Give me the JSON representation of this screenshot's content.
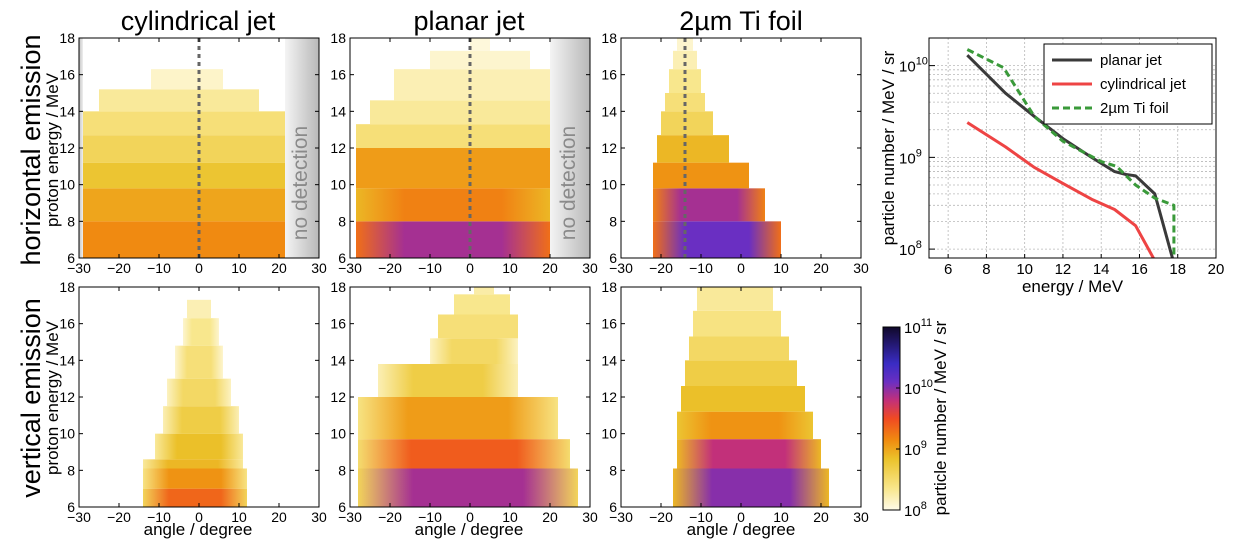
{
  "column_titles": [
    "cylindrical jet",
    "planar jet",
    "2µm Ti foil"
  ],
  "row_titles": [
    "horizontal emission",
    "vertical emission"
  ],
  "ylabel": "proton energy / MeV",
  "xlabel": "angle / degree",
  "no_detection_label": "no detection",
  "colorbar": {
    "label": "particle number / MeV / sr",
    "tick_mantissa": "10",
    "tick_exponents": [
      "8",
      "9",
      "10",
      "11"
    ],
    "scale": "log",
    "range": [
      100000000.0,
      100000000000.0
    ],
    "colors": [
      "#fffbe8",
      "#f8e68a",
      "#ebc22a",
      "#f08c10",
      "#f04a22",
      "#c2307a",
      "#6a2fc2",
      "#3a2cc4",
      "#10082a"
    ]
  },
  "chart_data": [
    {
      "type": "heatmap",
      "panel": "horizontal emission / cylindrical jet",
      "xlabel": "",
      "ylabel": "proton energy / MeV",
      "xlim": [
        -30,
        30
      ],
      "ylim": [
        6,
        18
      ],
      "xticks": [
        "−30",
        "−20",
        "−10",
        "0",
        "10",
        "20",
        "30"
      ],
      "yticks": [
        "6",
        "8",
        "10",
        "12",
        "14",
        "16",
        "18"
      ],
      "dashed_line_angle": 0,
      "shaded_regions": [
        [
          -30,
          -29
        ],
        [
          21.5,
          30
        ]
      ],
      "shaded_label": "no detection",
      "energy_bands": [
        {
          "e": [
            6,
            8
          ],
          "angle": [
            -29,
            21.5
          ],
          "log_value": 9.15
        },
        {
          "e": [
            8,
            9.8
          ],
          "angle": [
            -29,
            21.5
          ],
          "log_value": 9.0
        },
        {
          "e": [
            9.8,
            11.2
          ],
          "angle": [
            -29,
            21.5
          ],
          "log_value": 8.8
        },
        {
          "e": [
            11.2,
            12.7
          ],
          "angle": [
            -29,
            21.5
          ],
          "log_value": 8.6
        },
        {
          "e": [
            12.7,
            14
          ],
          "angle": [
            -29,
            21.5
          ],
          "log_value": 8.45
        },
        {
          "e": [
            14,
            15.2
          ],
          "angle": [
            -25,
            15
          ],
          "log_value": 8.3
        },
        {
          "e": [
            15.2,
            16.3
          ],
          "angle": [
            -12,
            6
          ],
          "log_value": 8.12
        }
      ]
    },
    {
      "type": "heatmap",
      "panel": "horizontal emission / planar jet",
      "xlabel": "",
      "ylabel": "",
      "xlim": [
        -30,
        30
      ],
      "ylim": [
        6,
        18
      ],
      "xticks": [
        "−30",
        "−20",
        "−10",
        "0",
        "10",
        "20",
        "30"
      ],
      "yticks": [
        "6",
        "8",
        "10",
        "12",
        "14",
        "16",
        "18"
      ],
      "dashed_line_angle": 0,
      "shaded_regions": [
        [
          20,
          30
        ]
      ],
      "shaded_label": "no detection",
      "energy_bands": [
        {
          "e": [
            6,
            8
          ],
          "angle": [
            -28.5,
            20
          ],
          "log_value": 9.9,
          "edge_value": 9.3
        },
        {
          "e": [
            8,
            9.8
          ],
          "angle": [
            -28.5,
            20
          ],
          "log_value": 9.2,
          "edge_value": 8.9
        },
        {
          "e": [
            9.8,
            12
          ],
          "angle": [
            -28.5,
            20
          ],
          "log_value": 9.05
        },
        {
          "e": [
            12,
            13.3
          ],
          "angle": [
            -28.5,
            20
          ],
          "log_value": 8.45
        },
        {
          "e": [
            13.3,
            14.6
          ],
          "angle": [
            -25,
            20
          ],
          "log_value": 8.3
        },
        {
          "e": [
            14.6,
            16.3
          ],
          "angle": [
            -19,
            20
          ],
          "log_value": 8.2
        },
        {
          "e": [
            16.3,
            17.3
          ],
          "angle": [
            -10,
            15
          ],
          "log_value": 8.1
        },
        {
          "e": [
            17.3,
            18
          ],
          "angle": [
            0,
            5
          ],
          "log_value": 8.05
        }
      ]
    },
    {
      "type": "heatmap",
      "panel": "horizontal emission / 2µm Ti foil",
      "xlabel": "",
      "ylabel": "",
      "xlim": [
        -30,
        30
      ],
      "ylim": [
        6,
        18
      ],
      "xticks": [
        "−30",
        "−20",
        "−10",
        "0",
        "10",
        "20",
        "30"
      ],
      "yticks": [
        "6",
        "8",
        "10",
        "12",
        "14",
        "16",
        "18"
      ],
      "dashed_line_angle": -14,
      "energy_bands": [
        {
          "e": [
            6,
            8
          ],
          "angle": [
            -22,
            10
          ],
          "log_value": 10.1,
          "edge_value": 9.3
        },
        {
          "e": [
            8,
            9.8
          ],
          "angle": [
            -22,
            6
          ],
          "log_value": 9.9,
          "edge_value": 9.2
        },
        {
          "e": [
            9.8,
            11.2
          ],
          "angle": [
            -22,
            2
          ],
          "log_value": 9.1
        },
        {
          "e": [
            11.2,
            12.7
          ],
          "angle": [
            -21,
            -3
          ],
          "log_value": 8.9
        },
        {
          "e": [
            12.7,
            14
          ],
          "angle": [
            -20,
            -7
          ],
          "log_value": 8.6
        },
        {
          "e": [
            14,
            15
          ],
          "angle": [
            -19,
            -9
          ],
          "log_value": 8.45
        },
        {
          "e": [
            15,
            16.3
          ],
          "angle": [
            -18,
            -10
          ],
          "log_value": 8.35
        },
        {
          "e": [
            16.3,
            17.3
          ],
          "angle": [
            -17,
            -11
          ],
          "log_value": 8.2
        },
        {
          "e": [
            17.3,
            18
          ],
          "angle": [
            -16,
            -12
          ],
          "log_value": 8.1
        }
      ]
    },
    {
      "type": "heatmap",
      "panel": "vertical emission / cylindrical jet",
      "xlabel": "angle / degree",
      "ylabel": "proton energy / MeV",
      "xlim": [
        -30,
        30
      ],
      "ylim": [
        6,
        18
      ],
      "xticks": [
        "−30",
        "−20",
        "−10",
        "0",
        "10",
        "20",
        "30"
      ],
      "yticks": [
        "6",
        "8",
        "10",
        "12",
        "14",
        "16",
        "18"
      ],
      "energy_bands": [
        {
          "e": [
            6,
            7
          ],
          "angle": [
            -14,
            12
          ],
          "log_value": 9.35,
          "edge_value": 8.6
        },
        {
          "e": [
            7,
            8.1
          ],
          "angle": [
            -14,
            12
          ],
          "log_value": 9.1,
          "edge_value": 8.4
        },
        {
          "e": [
            8.1,
            8.6
          ],
          "angle": [
            -14,
            11
          ],
          "log_value": 8.9,
          "edge_value": 8.3
        },
        {
          "e": [
            8.6,
            10
          ],
          "angle": [
            -11,
            11
          ],
          "log_value": 8.85,
          "edge_value": 8.3
        },
        {
          "e": [
            10,
            11.5
          ],
          "angle": [
            -9,
            10
          ],
          "log_value": 8.7,
          "edge_value": 8.2
        },
        {
          "e": [
            11.5,
            13
          ],
          "angle": [
            -8,
            8
          ],
          "log_value": 8.55,
          "edge_value": 8.15
        },
        {
          "e": [
            13,
            14.8
          ],
          "angle": [
            -6,
            6
          ],
          "log_value": 8.45,
          "edge_value": 8.1
        },
        {
          "e": [
            14.8,
            16.3
          ],
          "angle": [
            -4,
            5
          ],
          "log_value": 8.35,
          "edge_value": 8.1
        },
        {
          "e": [
            16.3,
            17.3
          ],
          "angle": [
            -3,
            3
          ],
          "log_value": 8.2
        }
      ]
    },
    {
      "type": "heatmap",
      "panel": "vertical emission / planar jet",
      "xlabel": "angle / degree",
      "ylabel": "",
      "xlim": [
        -30,
        30
      ],
      "ylim": [
        6,
        18
      ],
      "xticks": [
        "−30",
        "−20",
        "−10",
        "0",
        "10",
        "20",
        "30"
      ],
      "yticks": [
        "6",
        "8",
        "10",
        "12",
        "14",
        "16",
        "18"
      ],
      "energy_bands": [
        {
          "e": [
            6,
            8.1
          ],
          "angle": [
            -28,
            27
          ],
          "log_value": 9.9,
          "edge_value": 8.6
        },
        {
          "e": [
            8.1,
            9.7
          ],
          "angle": [
            -28,
            25
          ],
          "log_value": 9.4,
          "edge_value": 8.5
        },
        {
          "e": [
            9.7,
            12
          ],
          "angle": [
            -28,
            22
          ],
          "log_value": 9.05,
          "edge_value": 8.4
        },
        {
          "e": [
            12,
            13.8
          ],
          "angle": [
            -23,
            12
          ],
          "log_value": 8.7,
          "edge_value": 8.2
        },
        {
          "e": [
            13.8,
            15.2
          ],
          "angle": [
            -10,
            12
          ],
          "log_value": 8.55,
          "edge_value": 8.15
        },
        {
          "e": [
            15.2,
            16.5
          ],
          "angle": [
            -8,
            12
          ],
          "log_value": 8.45
        },
        {
          "e": [
            16.5,
            17.6
          ],
          "angle": [
            -4,
            10
          ],
          "log_value": 8.35
        },
        {
          "e": [
            17.6,
            18
          ],
          "angle": [
            1,
            6
          ],
          "log_value": 8.25
        }
      ]
    },
    {
      "type": "heatmap",
      "panel": "vertical emission / 2µm Ti foil",
      "xlabel": "angle / degree",
      "ylabel": "",
      "xlim": [
        -30,
        30
      ],
      "ylim": [
        6,
        18
      ],
      "xticks": [
        "−30",
        "−20",
        "−10",
        "0",
        "10",
        "20",
        "30"
      ],
      "yticks": [
        "6",
        "8",
        "10",
        "12",
        "14",
        "16",
        "18"
      ],
      "energy_bands": [
        {
          "e": [
            6,
            8.1
          ],
          "angle": [
            -17,
            22
          ],
          "log_value": 10.0,
          "edge_value": 8.9
        },
        {
          "e": [
            8.1,
            9.7
          ],
          "angle": [
            -16,
            20
          ],
          "log_value": 9.8,
          "edge_value": 8.9
        },
        {
          "e": [
            9.7,
            11.2
          ],
          "angle": [
            -16,
            18
          ],
          "log_value": 9.1,
          "edge_value": 8.8
        },
        {
          "e": [
            11.2,
            12.6
          ],
          "angle": [
            -15,
            16
          ],
          "log_value": 8.85
        },
        {
          "e": [
            12.6,
            14
          ],
          "angle": [
            -14,
            14
          ],
          "log_value": 8.7
        },
        {
          "e": [
            14,
            15.3
          ],
          "angle": [
            -13,
            12
          ],
          "log_value": 8.55
        },
        {
          "e": [
            15.3,
            16.7
          ],
          "angle": [
            -12,
            10
          ],
          "log_value": 8.4
        },
        {
          "e": [
            16.7,
            18
          ],
          "angle": [
            -11,
            8
          ],
          "log_value": 8.3
        }
      ]
    },
    {
      "type": "line",
      "panel": "energy spectra",
      "xlabel": "energy / MeV",
      "ylabel": "particle number / MeV / sr",
      "xlim": [
        5,
        20
      ],
      "ylim": [
        80000000.0,
        20000000000.0
      ],
      "yscale": "log",
      "grid": true,
      "legend_position": "top-right",
      "xticks": [
        "6",
        "8",
        "10",
        "12",
        "14",
        "16",
        "18",
        "20"
      ],
      "ytick_mantissa": "10",
      "ytick_exponents": [
        "8",
        "9",
        "10"
      ],
      "series": [
        {
          "name": "planar jet",
          "color": "#3a3a3a",
          "style": "solid",
          "x": [
            7,
            9,
            10.5,
            12,
            13.5,
            14.7,
            15.3,
            15.8,
            16.8,
            17.8
          ],
          "y": [
            13000000000.0,
            5000000000.0,
            2800000000.0,
            1600000000.0,
            1000000000.0,
            700000000.0,
            650000000.0,
            630000000.0,
            400000000.0,
            70000000.0
          ]
        },
        {
          "name": "cylindrical jet",
          "color": "#ee4444",
          "style": "solid",
          "x": [
            7,
            9,
            10.5,
            12,
            13.5,
            14.7,
            15.8,
            16.8
          ],
          "y": [
            2400000000.0,
            1300000000.0,
            780000000.0,
            520000000.0,
            350000000.0,
            270000000.0,
            180000000.0,
            75000000.0
          ]
        },
        {
          "name": "2µm Ti foil",
          "color": "#3a9a3a",
          "style": "dashed",
          "x": [
            7,
            8.9,
            10.5,
            12,
            14,
            14.8,
            15.8,
            16.8,
            17.8,
            17.8
          ],
          "y": [
            15000000000.0,
            9500000000.0,
            2800000000.0,
            1500000000.0,
            900000000.0,
            800000000.0,
            500000000.0,
            360000000.0,
            300000000.0,
            70000000.0
          ]
        }
      ]
    }
  ]
}
